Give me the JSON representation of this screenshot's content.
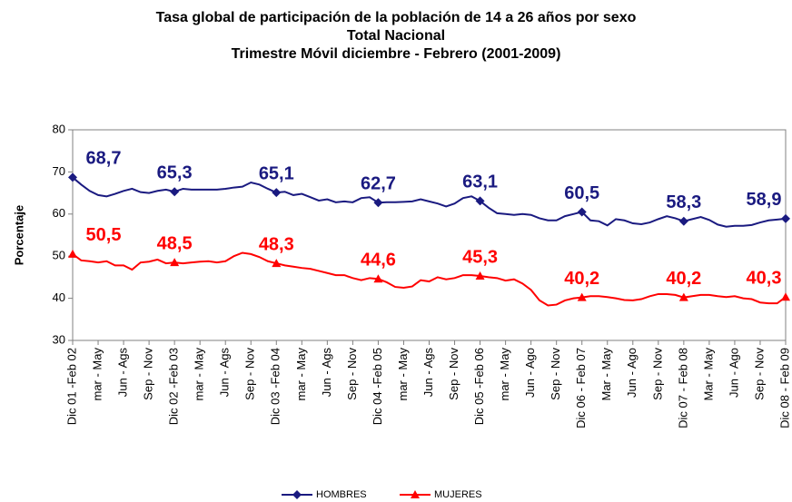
{
  "chart_data": {
    "type": "line",
    "title": "Tasa global de participación de la población de 14 a 26 años por sexo",
    "subtitle": "Total Nacional",
    "subtitle2": "Trimestre Móvil diciembre - Febrero (2001-2009)",
    "ylabel": "Porcentaje",
    "ylim": [
      30,
      80
    ],
    "yticks": [
      30,
      40,
      50,
      60,
      70,
      80
    ],
    "legend": "bottom",
    "categories": [
      "Dic 01 -Feb 02",
      null,
      null,
      "mar - May",
      null,
      null,
      "Jun - Ags",
      null,
      null,
      "Sep - Nov",
      null,
      null,
      "Dic 02 -Feb 03",
      null,
      null,
      "mar - May",
      null,
      null,
      "Jun - Ags",
      null,
      null,
      "Sep - Nov",
      null,
      null,
      "Dic 03 -Feb 04",
      null,
      null,
      "mar - May",
      null,
      null,
      "Jun - Ags",
      null,
      null,
      "Sep - Nov",
      null,
      null,
      "Dic 04 -Feb 05",
      null,
      null,
      "mar - May",
      null,
      null,
      "Jun - Ags",
      null,
      null,
      "Sep - Nov",
      null,
      null,
      "Dic 05 -Feb 06",
      null,
      null,
      "mar - May",
      null,
      null,
      "Jun - Ago",
      null,
      null,
      "Sep - Nov",
      null,
      null,
      "Dic 06 - Feb 07",
      null,
      null,
      "Mar - May",
      null,
      null,
      "Jun - Ago",
      null,
      null,
      "Sep - Nov",
      null,
      null,
      "Dic 07 - Feb 08",
      null,
      null,
      "Mar - May",
      null,
      null,
      "Jun - Ago",
      null,
      null,
      "Sep - Nov",
      null,
      null,
      "Dic 08 - Feb 09"
    ],
    "series": [
      {
        "name": "HOMBRES",
        "color": "#1a1a80",
        "marker": "diamond",
        "values": [
          68.7,
          67,
          65.5,
          64.5,
          64.2,
          64.8,
          65.5,
          66,
          65.2,
          65,
          65.5,
          65.8,
          65.3,
          66,
          65.8,
          65.8,
          65.8,
          65.8,
          66,
          66.3,
          66.5,
          67.5,
          67,
          66,
          65.1,
          65.3,
          64.5,
          64.8,
          64,
          63.2,
          63.5,
          62.8,
          63,
          62.8,
          63.8,
          64,
          62.7,
          62.8,
          62.8,
          62.9,
          63,
          63.5,
          63,
          62.5,
          61.8,
          62.5,
          63.8,
          64.2,
          63.1,
          61.5,
          60.2,
          60,
          59.8,
          60,
          59.8,
          59,
          58.5,
          58.5,
          59.5,
          60,
          60.5,
          58.5,
          58.3,
          57.3,
          58.8,
          58.5,
          57.8,
          57.6,
          58,
          58.8,
          59.5,
          59,
          58.3,
          58.8,
          59.3,
          58.6,
          57.5,
          57,
          57.2,
          57.2,
          57.4,
          58,
          58.5,
          58.7,
          58.9
        ],
        "value_labels": [
          "68,7",
          null,
          null,
          null,
          null,
          null,
          null,
          null,
          null,
          null,
          null,
          null,
          "65,3",
          null,
          null,
          null,
          null,
          null,
          null,
          null,
          null,
          null,
          null,
          null,
          "65,1",
          null,
          null,
          null,
          null,
          null,
          null,
          null,
          null,
          null,
          null,
          null,
          "62,7",
          null,
          null,
          null,
          null,
          null,
          null,
          null,
          null,
          null,
          null,
          null,
          "63,1",
          null,
          null,
          null,
          null,
          null,
          null,
          null,
          null,
          null,
          null,
          null,
          "60,5",
          null,
          null,
          null,
          null,
          null,
          null,
          null,
          null,
          null,
          null,
          null,
          "58,3",
          null,
          null,
          null,
          null,
          null,
          null,
          null,
          null,
          null,
          null,
          null,
          "58,9"
        ]
      },
      {
        "name": "MUJERES",
        "color": "#ff0000",
        "marker": "triangle",
        "values": [
          50.5,
          49,
          48.8,
          48.5,
          48.8,
          47.8,
          47.8,
          46.8,
          48.5,
          48.7,
          49.2,
          48.3,
          48.5,
          48.3,
          48.5,
          48.7,
          48.8,
          48.5,
          48.8,
          50,
          50.8,
          50.5,
          49.8,
          48.8,
          48.3,
          47.8,
          47.5,
          47.2,
          47,
          46.5,
          46,
          45.5,
          45.5,
          44.8,
          44.3,
          44.8,
          44.6,
          43.8,
          42.7,
          42.5,
          42.8,
          44.3,
          44,
          45,
          44.5,
          44.8,
          45.5,
          45.5,
          45.3,
          45,
          44.8,
          44.2,
          44.5,
          43.5,
          42,
          39.5,
          38.3,
          38.5,
          39.5,
          40,
          40.2,
          40.5,
          40.5,
          40.3,
          40,
          39.6,
          39.5,
          39.8,
          40.5,
          41,
          41,
          40.8,
          40.2,
          40.5,
          40.8,
          40.8,
          40.5,
          40.3,
          40.5,
          40,
          39.8,
          39,
          38.8,
          38.8,
          40.3
        ],
        "value_labels": [
          "50,5",
          null,
          null,
          null,
          null,
          null,
          null,
          null,
          null,
          null,
          null,
          null,
          "48,5",
          null,
          null,
          null,
          null,
          null,
          null,
          null,
          null,
          null,
          null,
          null,
          "48,3",
          null,
          null,
          null,
          null,
          null,
          null,
          null,
          null,
          null,
          null,
          null,
          "44,6",
          null,
          null,
          null,
          null,
          null,
          null,
          null,
          null,
          null,
          null,
          null,
          "45,3",
          null,
          null,
          null,
          null,
          null,
          null,
          null,
          null,
          null,
          null,
          null,
          "40,2",
          null,
          null,
          null,
          null,
          null,
          null,
          null,
          null,
          null,
          null,
          null,
          "40,2",
          null,
          null,
          null,
          null,
          null,
          null,
          null,
          null,
          null,
          null,
          null,
          "40,3"
        ]
      }
    ]
  }
}
